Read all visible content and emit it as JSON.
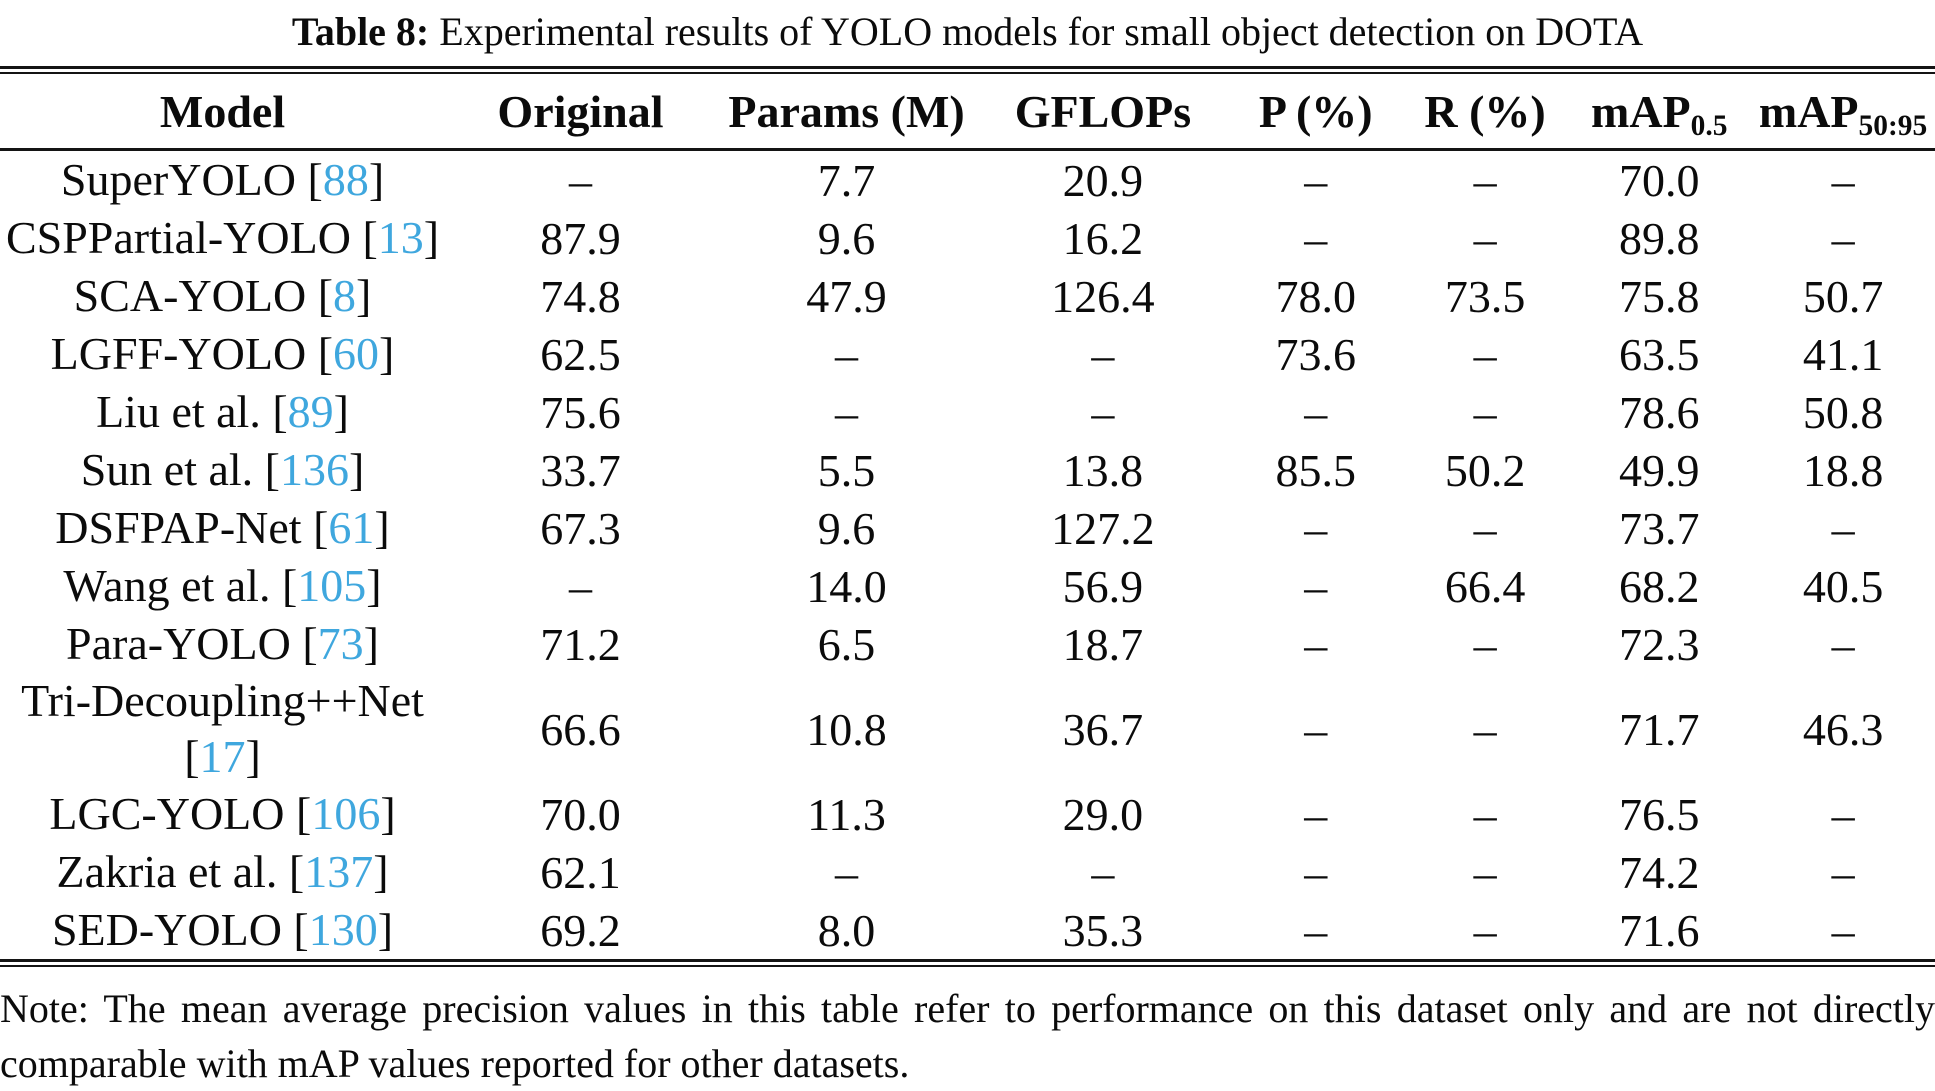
{
  "caption": {
    "label": "Table 8:",
    "text": "Experimental results of YOLO models for small object detection on DOTA"
  },
  "colors": {
    "citation_blue": "#3FA7DE",
    "text": "#0b0b0b",
    "rule": "#141414"
  },
  "chart_data": {
    "type": "table",
    "title": "Table 8: Experimental results of YOLO models for small object detection on DOTA",
    "columns": [
      {
        "key": "model",
        "label": "Model"
      },
      {
        "key": "orig",
        "label": "Original"
      },
      {
        "key": "params",
        "label": "Params (M)"
      },
      {
        "key": "gflops",
        "label": "GFLOPs"
      },
      {
        "key": "p",
        "label": "P (%)"
      },
      {
        "key": "r",
        "label": "R (%)"
      },
      {
        "key": "map05",
        "label": "mAP",
        "subscript": "0.5"
      },
      {
        "key": "map5095",
        "label": "mAP",
        "subscript": "50:95"
      }
    ],
    "rows": [
      {
        "model": "SuperYOLO",
        "citation": "88",
        "orig": "–",
        "params": "7.7",
        "gflops": "20.9",
        "p": "–",
        "r": "–",
        "map05": "70.0",
        "map5095": "–"
      },
      {
        "model": "CSPPartial-YOLO",
        "citation": "13",
        "orig": "87.9",
        "params": "9.6",
        "gflops": "16.2",
        "p": "–",
        "r": "–",
        "map05": "89.8",
        "map5095": "–"
      },
      {
        "model": "SCA-YOLO",
        "citation": "8",
        "orig": "74.8",
        "params": "47.9",
        "gflops": "126.4",
        "p": "78.0",
        "r": "73.5",
        "map05": "75.8",
        "map5095": "50.7"
      },
      {
        "model": "LGFF-YOLO",
        "citation": "60",
        "orig": "62.5",
        "params": "–",
        "gflops": "–",
        "p": "73.6",
        "r": "–",
        "map05": "63.5",
        "map5095": "41.1"
      },
      {
        "model": "Liu et al.",
        "citation": "89",
        "orig": "75.6",
        "params": "–",
        "gflops": "–",
        "p": "–",
        "r": "–",
        "map05": "78.6",
        "map5095": "50.8"
      },
      {
        "model": "Sun et al.",
        "citation": "136",
        "orig": "33.7",
        "params": "5.5",
        "gflops": "13.8",
        "p": "85.5",
        "r": "50.2",
        "map05": "49.9",
        "map5095": "18.8"
      },
      {
        "model": "DSFPAP-Net",
        "citation": "61",
        "orig": "67.3",
        "params": "9.6",
        "gflops": "127.2",
        "p": "–",
        "r": "–",
        "map05": "73.7",
        "map5095": "–"
      },
      {
        "model": "Wang et al.",
        "citation": "105",
        "orig": "–",
        "params": "14.0",
        "gflops": "56.9",
        "p": "–",
        "r": "66.4",
        "map05": "68.2",
        "map5095": "40.5"
      },
      {
        "model": "Para-YOLO",
        "citation": "73",
        "orig": "71.2",
        "params": "6.5",
        "gflops": "18.7",
        "p": "–",
        "r": "–",
        "map05": "72.3",
        "map5095": "–"
      },
      {
        "model": "Tri-Decoupling++Net",
        "citation": "17",
        "orig": "66.6",
        "params": "10.8",
        "gflops": "36.7",
        "p": "–",
        "r": "–",
        "map05": "71.7",
        "map5095": "46.3"
      },
      {
        "model": "LGC-YOLO",
        "citation": "106",
        "orig": "70.0",
        "params": "11.3",
        "gflops": "29.0",
        "p": "–",
        "r": "–",
        "map05": "76.5",
        "map5095": "–"
      },
      {
        "model": "Zakria et al.",
        "citation": "137",
        "orig": "62.1",
        "params": "–",
        "gflops": "–",
        "p": "–",
        "r": "–",
        "map05": "74.2",
        "map5095": "–"
      },
      {
        "model": "SED-YOLO",
        "citation": "130",
        "orig": "69.2",
        "params": "8.0",
        "gflops": "35.3",
        "p": "–",
        "r": "–",
        "map05": "71.6",
        "map5095": "–"
      }
    ]
  },
  "note": "Note: The mean average precision values in this table refer to performance on this dataset only and are not directly comparable with mAP values reported for other datasets."
}
